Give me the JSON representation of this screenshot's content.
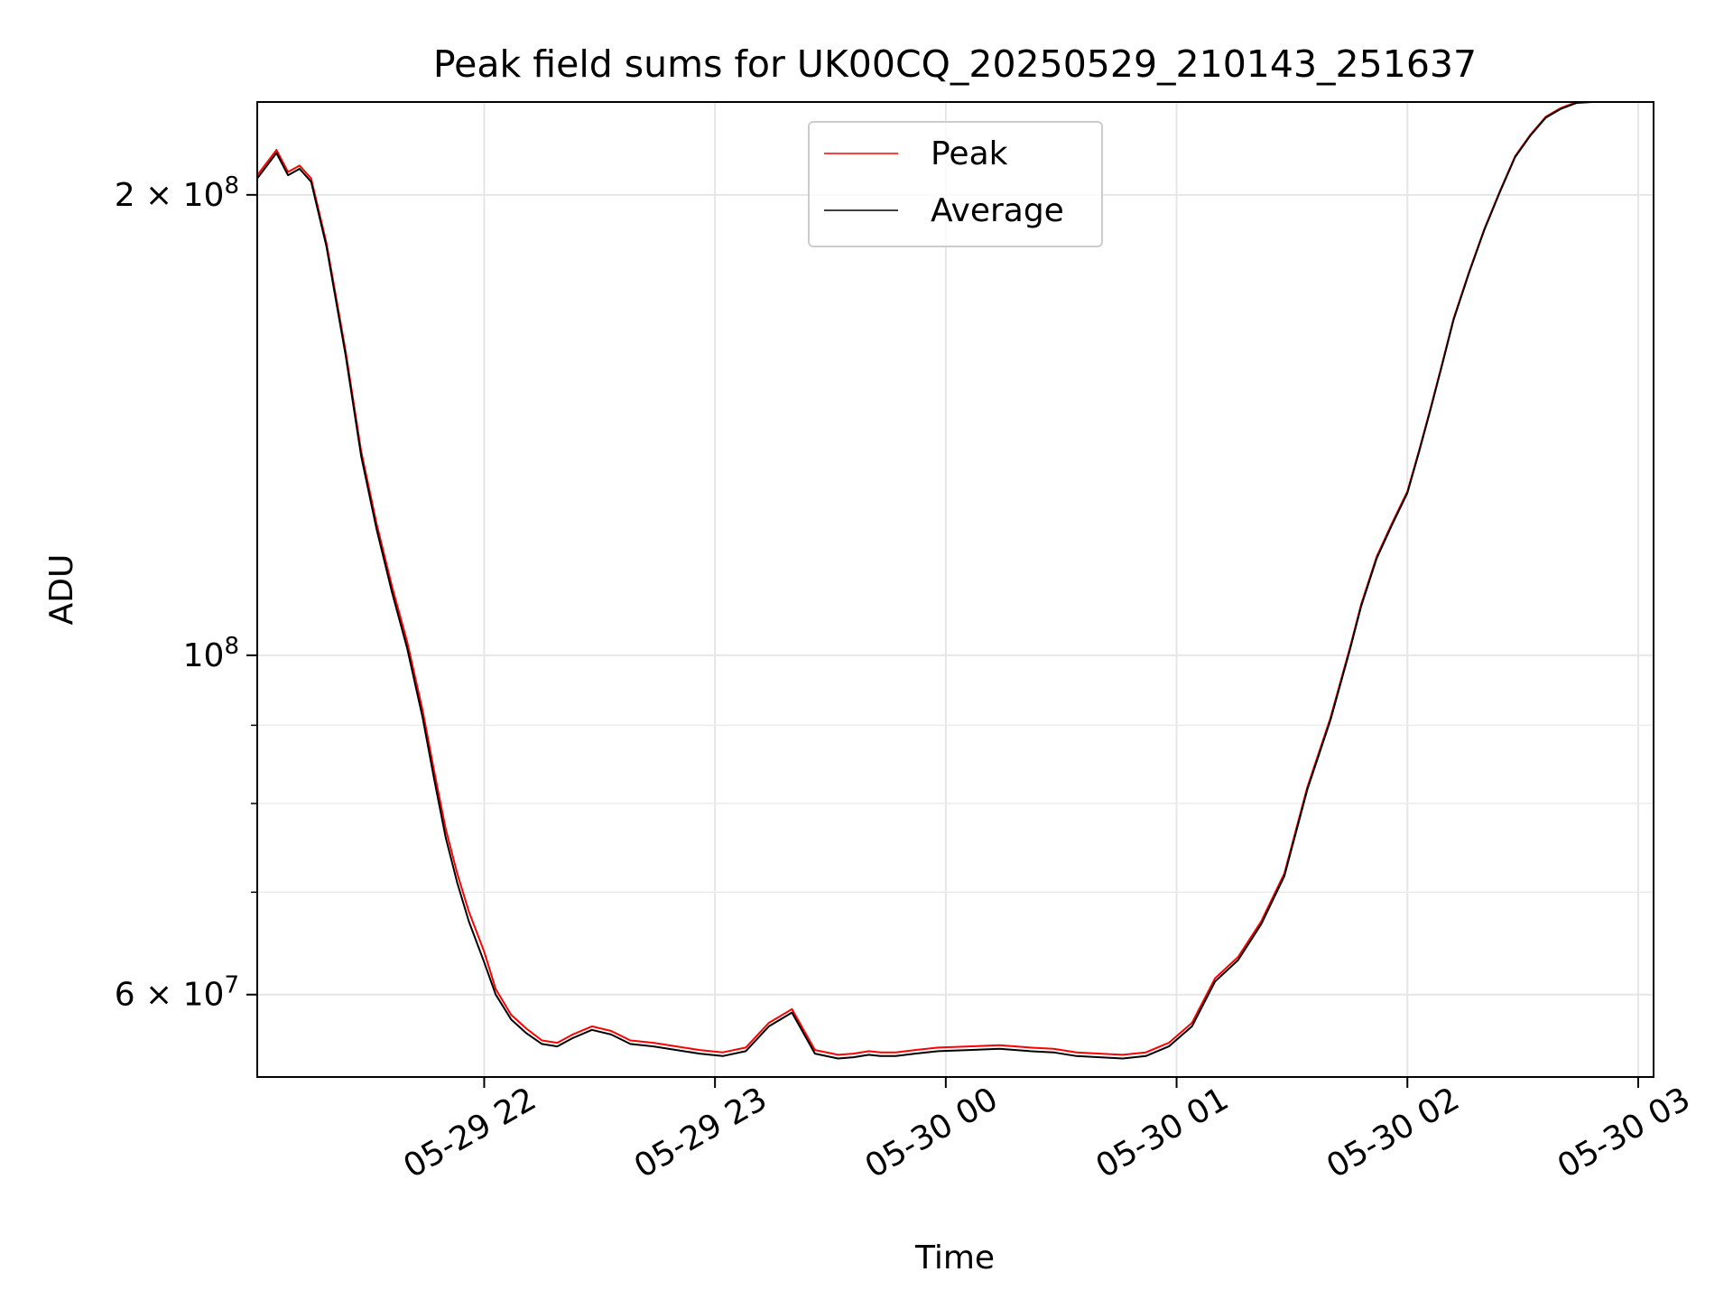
{
  "chart_data": {
    "type": "line",
    "title": "Peak field sums for UK00CQ_20250529_210143_251637",
    "xlabel": "Time",
    "ylabel": "ADU",
    "yscale": "log",
    "ylim": [
      53000000,
      230000000
    ],
    "xlim": [
      "2025-05-29 21:01",
      "2025-05-30 03:04"
    ],
    "grid": true,
    "legend_position": "top-center",
    "x_ticks": [
      {
        "value": "2025-05-29 22:00",
        "label": "05-29 22"
      },
      {
        "value": "2025-05-29 23:00",
        "label": "05-29 23"
      },
      {
        "value": "2025-05-30 00:00",
        "label": "05-30 00"
      },
      {
        "value": "2025-05-30 01:00",
        "label": "05-30 01"
      },
      {
        "value": "2025-05-30 02:00",
        "label": "05-30 02"
      },
      {
        "value": "2025-05-30 03:00",
        "label": "05-30 03"
      }
    ],
    "y_major_ticks": [
      {
        "value": 60000000,
        "base": "6 × 10",
        "exp": "7"
      },
      {
        "value": 100000000,
        "base": "10",
        "exp": "8"
      },
      {
        "value": 200000000,
        "base": "2 × 10",
        "exp": "8"
      }
    ],
    "y_minor_ticks": [
      70000000,
      80000000,
      90000000
    ],
    "x": [
      "2025-05-29 21:01",
      "2025-05-29 21:06",
      "2025-05-29 21:09",
      "2025-05-29 21:12",
      "2025-05-29 21:15",
      "2025-05-29 21:19",
      "2025-05-29 21:24",
      "2025-05-29 21:28",
      "2025-05-29 21:32",
      "2025-05-29 21:36",
      "2025-05-29 21:40",
      "2025-05-29 21:44",
      "2025-05-29 21:47",
      "2025-05-29 21:50",
      "2025-05-29 21:53",
      "2025-05-29 21:56",
      "2025-05-29 22:00",
      "2025-05-29 22:03",
      "2025-05-29 22:07",
      "2025-05-29 22:11",
      "2025-05-29 22:15",
      "2025-05-29 22:19",
      "2025-05-29 22:23",
      "2025-05-29 22:28",
      "2025-05-29 22:33",
      "2025-05-29 22:38",
      "2025-05-29 22:44",
      "2025-05-29 22:50",
      "2025-05-29 22:56",
      "2025-05-29 23:02",
      "2025-05-29 23:08",
      "2025-05-29 23:14",
      "2025-05-29 23:20",
      "2025-05-29 23:26",
      "2025-05-29 23:32",
      "2025-05-29 23:36",
      "2025-05-29 23:40",
      "2025-05-29 23:43",
      "2025-05-29 23:47",
      "2025-05-29 23:52",
      "2025-05-29 23:58",
      "2025-05-30 00:06",
      "2025-05-30 00:14",
      "2025-05-30 00:22",
      "2025-05-30 00:28",
      "2025-05-30 00:34",
      "2025-05-30 00:40",
      "2025-05-30 00:46",
      "2025-05-30 00:52",
      "2025-05-30 00:58",
      "2025-05-30 01:04",
      "2025-05-30 01:10",
      "2025-05-30 01:16",
      "2025-05-30 01:22",
      "2025-05-30 01:28",
      "2025-05-30 01:34",
      "2025-05-30 01:40",
      "2025-05-30 01:45",
      "2025-05-30 01:48",
      "2025-05-30 01:52",
      "2025-05-30 01:56",
      "2025-05-30 02:00",
      "2025-05-30 02:03",
      "2025-05-30 02:06",
      "2025-05-30 02:09",
      "2025-05-30 02:12",
      "2025-05-30 02:16",
      "2025-05-30 02:20",
      "2025-05-30 02:24",
      "2025-05-30 02:28",
      "2025-05-30 02:32",
      "2025-05-30 02:36",
      "2025-05-30 02:40",
      "2025-05-30 02:44",
      "2025-05-30 02:48",
      "2025-05-30 02:51",
      "2025-05-30 02:54"
    ],
    "series": [
      {
        "name": "Peak",
        "color": "#ff0000",
        "values": [
          206000000,
          214000000,
          207000000,
          209000000,
          205000000,
          186000000,
          158000000,
          136000000,
          122000000,
          111000000,
          102000000,
          92000000,
          84000000,
          77000000,
          72000000,
          68000000,
          64000000,
          60500000,
          58200000,
          57000000,
          56000000,
          55800000,
          56500000,
          57200000,
          56800000,
          56000000,
          55800000,
          55500000,
          55200000,
          55000000,
          55400000,
          57500000,
          58700000,
          55200000,
          54800000,
          54900000,
          55100000,
          55000000,
          55000000,
          55200000,
          55400000,
          55500000,
          55600000,
          55400000,
          55300000,
          55000000,
          54900000,
          54800000,
          55000000,
          55800000,
          57500000,
          61500000,
          63500000,
          67000000,
          72000000,
          82000000,
          91000000,
          101000000,
          108000000,
          116000000,
          122000000,
          128000000,
          136000000,
          145000000,
          155000000,
          166000000,
          178000000,
          190000000,
          201000000,
          212000000,
          219000000,
          225000000,
          228000000,
          230000000,
          231000000,
          231000000,
          231000000
        ]
      },
      {
        "name": "Average",
        "color": "#000000",
        "values": [
          205000000,
          213000000,
          206000000,
          208000000,
          204000000,
          185000000,
          157000000,
          135000000,
          121000000,
          110000000,
          101000000,
          91000000,
          83000000,
          76000000,
          71000000,
          67000000,
          63000000,
          60000000,
          57800000,
          56600000,
          55700000,
          55500000,
          56200000,
          56900000,
          56500000,
          55700000,
          55500000,
          55200000,
          54900000,
          54700000,
          55100000,
          57200000,
          58400000,
          54900000,
          54500000,
          54600000,
          54800000,
          54700000,
          54700000,
          54900000,
          55100000,
          55200000,
          55300000,
          55100000,
          55000000,
          54700000,
          54600000,
          54500000,
          54700000,
          55500000,
          57200000,
          61200000,
          63200000,
          66700000,
          71700000,
          81700000,
          90700000,
          100700000,
          107700000,
          115700000,
          121700000,
          127700000,
          135700000,
          144700000,
          154700000,
          165700000,
          177700000,
          189700000,
          200700000,
          211700000,
          218700000,
          224700000,
          227700000,
          229700000,
          230700000,
          230700000,
          230700000
        ]
      }
    ]
  }
}
